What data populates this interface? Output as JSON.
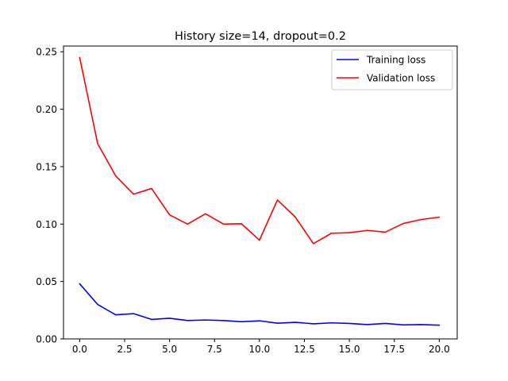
{
  "chart_data": {
    "type": "line",
    "title": "History size=14, dropout=0.2",
    "xlabel": "",
    "ylabel": "",
    "xlim": [
      -0.9,
      21.0
    ],
    "ylim": [
      0.0,
      0.255
    ],
    "x_ticks": [
      0.0,
      2.5,
      5.0,
      7.5,
      10.0,
      12.5,
      15.0,
      17.5,
      20.0
    ],
    "x_tick_labels": [
      "0.0",
      "2.5",
      "5.0",
      "7.5",
      "10.0",
      "12.5",
      "15.0",
      "17.5",
      "20.0"
    ],
    "y_ticks": [
      0.0,
      0.05,
      0.1,
      0.15,
      0.2,
      0.25
    ],
    "y_tick_labels": [
      "0.00",
      "0.05",
      "0.10",
      "0.15",
      "0.20",
      "0.25"
    ],
    "grid": false,
    "legend_position": "top-right",
    "x": [
      0,
      1,
      2,
      3,
      4,
      5,
      6,
      7,
      8,
      9,
      10,
      11,
      12,
      13,
      14,
      15,
      16,
      17,
      18,
      19,
      20
    ],
    "series": [
      {
        "name": "Training loss",
        "color": "#0000ff",
        "values": [
          0.048,
          0.03,
          0.021,
          0.022,
          0.017,
          0.018,
          0.016,
          0.0165,
          0.016,
          0.015,
          0.0158,
          0.0137,
          0.0145,
          0.0132,
          0.014,
          0.0135,
          0.0125,
          0.0135,
          0.0122,
          0.0125,
          0.012
        ]
      },
      {
        "name": "Validation loss",
        "color": "#ff0000",
        "values": [
          0.245,
          0.17,
          0.142,
          0.126,
          0.131,
          0.108,
          0.1,
          0.109,
          0.1,
          0.1003,
          0.086,
          0.121,
          0.106,
          0.083,
          0.092,
          0.0925,
          0.0945,
          0.093,
          0.1005,
          0.104,
          0.106
        ]
      }
    ]
  }
}
